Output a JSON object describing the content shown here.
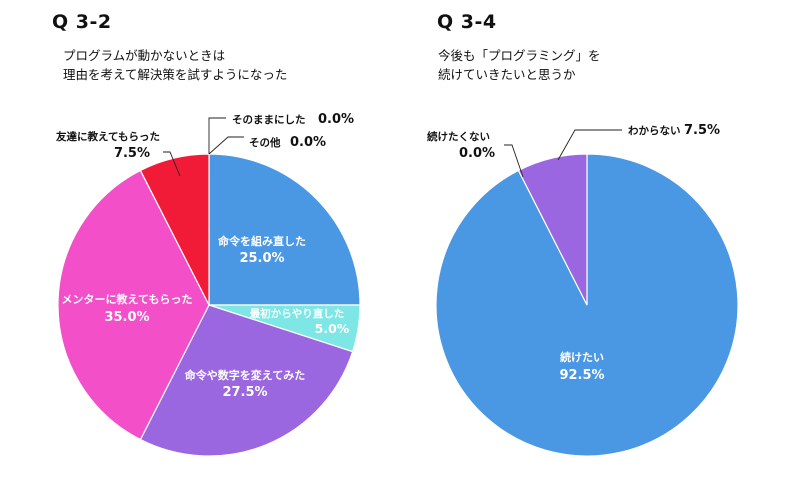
{
  "chart_data": [
    {
      "type": "pie",
      "question": "Q 3-2",
      "title_lines": [
        "プログラムが動かないときは",
        "理由を考えて解決策を試すようになった"
      ],
      "slices": [
        {
          "label": "命令を組み直した",
          "value": 25.0,
          "value_text": "25.0%",
          "color": "#4A97E3"
        },
        {
          "label": "最初からやり直した",
          "value": 5.0,
          "value_text": "5.0%",
          "color": "#7FE6E6"
        },
        {
          "label": "命令や数字を変えてみた",
          "value": 27.5,
          "value_text": "27.5%",
          "color": "#9B67E0"
        },
        {
          "label": "メンターに教えてもらった",
          "value": 35.0,
          "value_text": "35.0%",
          "color": "#F24FC8"
        },
        {
          "label": "友達に教えてもらった",
          "value": 7.5,
          "value_text": "7.5%",
          "color": "#F21B37"
        },
        {
          "label": "その他",
          "value": 0.0,
          "value_text": "0.0%",
          "color": "#F21B37"
        },
        {
          "label": "そのままにした",
          "value": 0.0,
          "value_text": "0.0%",
          "color": "#F21B37"
        }
      ]
    },
    {
      "type": "pie",
      "question": "Q 3-4",
      "title_lines": [
        "今後も「プログラミング」を",
        "続けていきたいと思うか"
      ],
      "slices": [
        {
          "label": "続けたい",
          "value": 92.5,
          "value_text": "92.5%",
          "color": "#4A97E3"
        },
        {
          "label": "わからない",
          "value": 7.5,
          "value_text": "7.5%",
          "color": "#9B67E0"
        },
        {
          "label": "続けたくない",
          "value": 0.0,
          "value_text": "0.0%",
          "color": "#9B67E0"
        }
      ]
    }
  ]
}
